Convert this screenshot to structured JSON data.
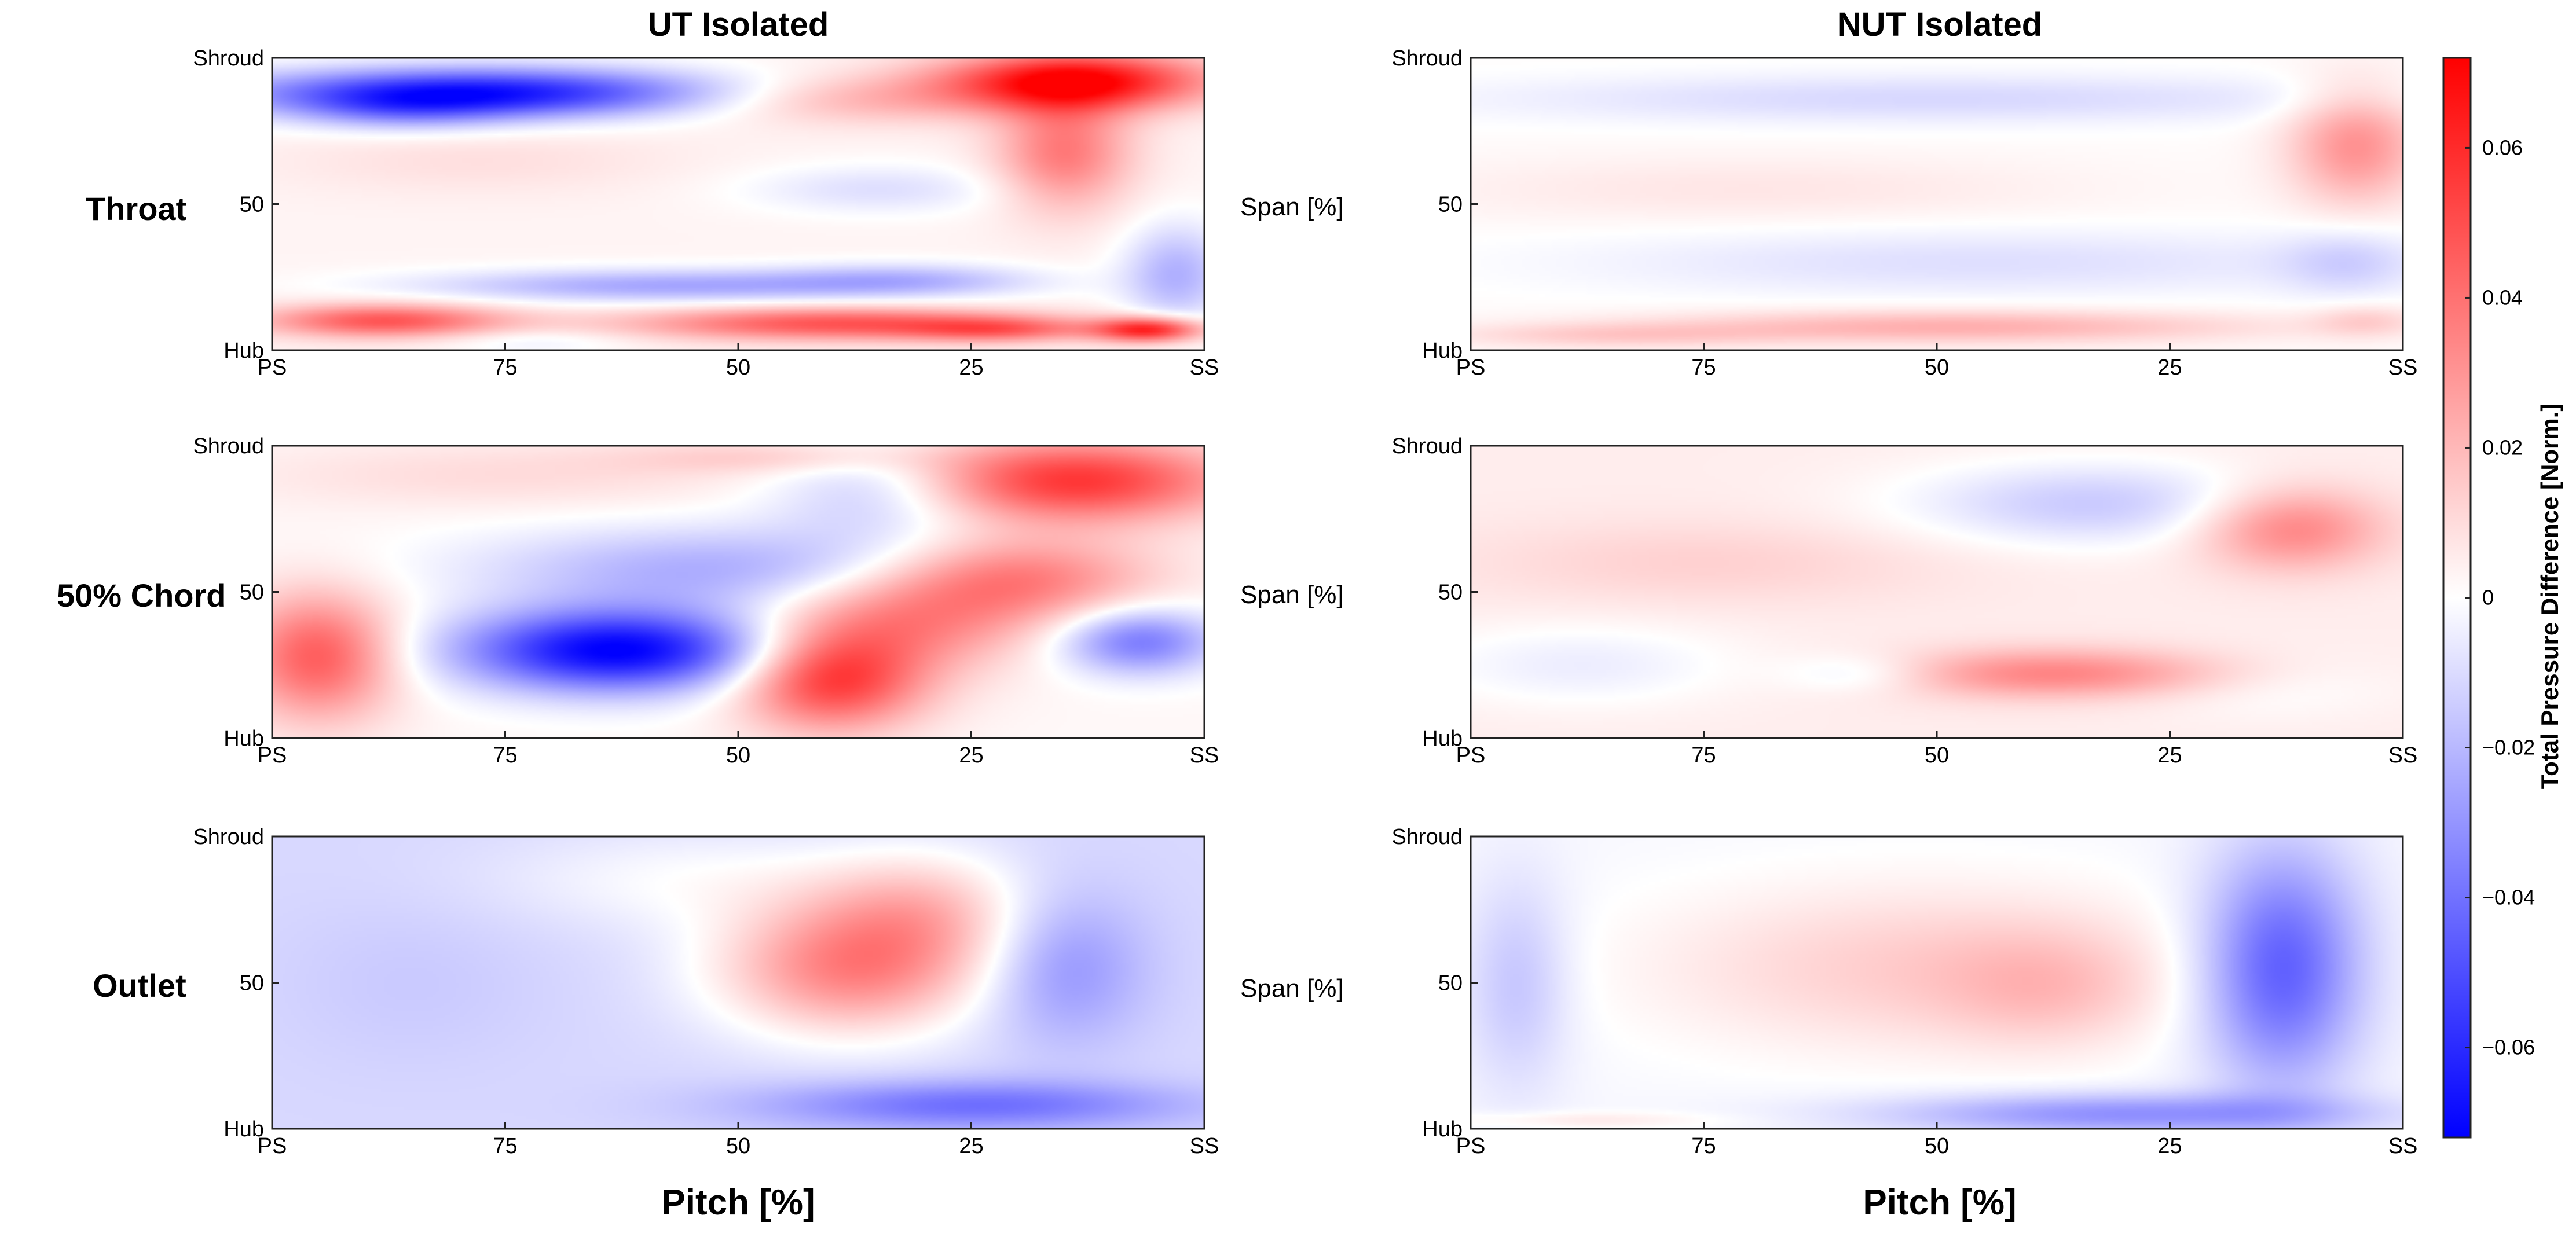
{
  "chart_data": {
    "type": "heatmap",
    "columns": [
      {
        "key": "ut",
        "title": "UT Isolated"
      },
      {
        "key": "nut",
        "title": "NUT Isolated"
      }
    ],
    "rows": [
      {
        "key": "throat",
        "label": "Throat"
      },
      {
        "key": "chord50",
        "label": "50% Chord"
      },
      {
        "key": "outlet",
        "label": "Outlet"
      }
    ],
    "x_axis": {
      "label": "Pitch [%]",
      "range": [
        100,
        0
      ],
      "tick_values": [
        100,
        75,
        50,
        25,
        0
      ],
      "tick_labels": [
        "PS",
        "75",
        "50",
        "25",
        "SS"
      ]
    },
    "y_axis": {
      "label": "Span [%]",
      "range": [
        0,
        100
      ],
      "tick_values": [
        0,
        50,
        100
      ],
      "tick_labels": [
        "Hub",
        "50",
        "Shroud"
      ]
    },
    "colorbar": {
      "label": "Total Pressure Difference [Norm.]",
      "range": [
        -0.072,
        0.072
      ],
      "tick_values": [
        0.06,
        0.04,
        0.02,
        0,
        -0.02,
        -0.04,
        -0.06
      ],
      "tick_labels": [
        "0.06",
        "0.04",
        "0.02",
        "0",
        "−0.02",
        "−0.04",
        "−0.06"
      ],
      "colors": {
        "low": "#0000ff",
        "mid": "#ffffff",
        "high": "#ff0000"
      }
    },
    "panels": [
      {
        "row": "throat",
        "col": "ut",
        "base": 0.003,
        "features": [
          {
            "pitch": 78,
            "span": 88,
            "sp": 18,
            "ss": 6,
            "amp": -0.07
          },
          {
            "pitch": 86,
            "span": 82,
            "sp": 8,
            "ss": 5,
            "amp": -0.02
          },
          {
            "pitch": 14,
            "span": 92,
            "sp": 10,
            "ss": 7,
            "amp": 0.07
          },
          {
            "pitch": 15,
            "span": 68,
            "sp": 5,
            "ss": 14,
            "amp": 0.035
          },
          {
            "pitch": 38,
            "span": 86,
            "sp": 12,
            "ss": 6,
            "amp": 0.02
          },
          {
            "pitch": 35,
            "span": 55,
            "sp": 10,
            "ss": 6,
            "amp": -0.012
          },
          {
            "pitch": 78,
            "span": 65,
            "sp": 15,
            "ss": 8,
            "amp": 0.006
          },
          {
            "pitch": 58,
            "span": 22,
            "sp": 18,
            "ss": 4,
            "amp": -0.028
          },
          {
            "pitch": 32,
            "span": 24,
            "sp": 10,
            "ss": 4,
            "amp": -0.02
          },
          {
            "pitch": 3,
            "span": 26,
            "sp": 4,
            "ss": 12,
            "amp": -0.025
          },
          {
            "pitch": 40,
            "span": 9,
            "sp": 15,
            "ss": 4,
            "amp": 0.045
          },
          {
            "pitch": 6,
            "span": 7,
            "sp": 4,
            "ss": 3,
            "amp": 0.06
          },
          {
            "pitch": 88,
            "span": 10,
            "sp": 9,
            "ss": 4,
            "amp": 0.045
          },
          {
            "pitch": 22,
            "span": 7,
            "sp": 7,
            "ss": 3,
            "amp": 0.03
          },
          {
            "pitch": 72,
            "span": 3,
            "sp": 7,
            "ss": 3,
            "amp": -0.008
          }
        ]
      },
      {
        "row": "throat",
        "col": "nut",
        "base": 0.001,
        "features": [
          {
            "pitch": 50,
            "span": 86,
            "sp": 34,
            "ss": 6,
            "amp": -0.012
          },
          {
            "pitch": 5,
            "span": 70,
            "sp": 5,
            "ss": 14,
            "amp": 0.03
          },
          {
            "pitch": 70,
            "span": 55,
            "sp": 25,
            "ss": 8,
            "amp": 0.006
          },
          {
            "pitch": 45,
            "span": 30,
            "sp": 30,
            "ss": 8,
            "amp": -0.01
          },
          {
            "pitch": 6,
            "span": 30,
            "sp": 5,
            "ss": 8,
            "amp": -0.012
          },
          {
            "pitch": 48,
            "span": 8,
            "sp": 22,
            "ss": 4,
            "amp": 0.022
          },
          {
            "pitch": 85,
            "span": 5,
            "sp": 12,
            "ss": 3,
            "amp": 0.012
          },
          {
            "pitch": 4,
            "span": 10,
            "sp": 4,
            "ss": 4,
            "amp": 0.012
          }
        ]
      },
      {
        "row": "chord50",
        "col": "ut",
        "base": 0.002,
        "features": [
          {
            "pitch": 63,
            "span": 30,
            "sp": 12,
            "ss": 10,
            "amp": -0.075
          },
          {
            "pitch": 52,
            "span": 58,
            "sp": 18,
            "ss": 10,
            "amp": -0.025
          },
          {
            "pitch": 35,
            "span": 85,
            "sp": 8,
            "ss": 12,
            "amp": -0.02
          },
          {
            "pitch": 14,
            "span": 88,
            "sp": 12,
            "ss": 10,
            "amp": 0.055
          },
          {
            "pitch": 20,
            "span": 55,
            "sp": 10,
            "ss": 10,
            "amp": 0.035
          },
          {
            "pitch": 40,
            "span": 20,
            "sp": 7,
            "ss": 12,
            "amp": 0.055
          },
          {
            "pitch": 32,
            "span": 40,
            "sp": 10,
            "ss": 12,
            "amp": 0.03
          },
          {
            "pitch": 95,
            "span": 28,
            "sp": 6,
            "ss": 15,
            "amp": 0.045
          },
          {
            "pitch": 7,
            "span": 33,
            "sp": 6,
            "ss": 8,
            "amp": -0.04
          },
          {
            "pitch": 75,
            "span": 90,
            "sp": 20,
            "ss": 8,
            "amp": 0.008
          },
          {
            "pitch": 45,
            "span": 96,
            "sp": 12,
            "ss": 4,
            "amp": 0.012
          }
        ]
      },
      {
        "row": "chord50",
        "col": "nut",
        "base": 0.005,
        "features": [
          {
            "pitch": 33,
            "span": 80,
            "sp": 14,
            "ss": 10,
            "amp": -0.02
          },
          {
            "pitch": 12,
            "span": 72,
            "sp": 7,
            "ss": 10,
            "amp": 0.032
          },
          {
            "pitch": 37,
            "span": 22,
            "sp": 13,
            "ss": 6,
            "amp": 0.03
          },
          {
            "pitch": 88,
            "span": 25,
            "sp": 12,
            "ss": 10,
            "amp": -0.01
          },
          {
            "pitch": 58,
            "span": 22,
            "sp": 6,
            "ss": 5,
            "amp": -0.012
          },
          {
            "pitch": 15,
            "span": 18,
            "sp": 10,
            "ss": 8,
            "amp": -0.006
          },
          {
            "pitch": 75,
            "span": 60,
            "sp": 18,
            "ss": 10,
            "amp": 0.008
          }
        ]
      },
      {
        "row": "outlet",
        "col": "ut",
        "base": -0.011,
        "features": [
          {
            "pitch": 38,
            "span": 55,
            "sp": 10,
            "ss": 16,
            "amp": 0.045
          },
          {
            "pitch": 30,
            "span": 75,
            "sp": 8,
            "ss": 14,
            "amp": 0.022
          },
          {
            "pitch": 15,
            "span": 55,
            "sp": 6,
            "ss": 18,
            "amp": -0.02
          },
          {
            "pitch": 25,
            "span": 8,
            "sp": 16,
            "ss": 6,
            "amp": -0.03
          },
          {
            "pitch": 55,
            "span": 85,
            "sp": 15,
            "ss": 12,
            "amp": 0.01
          },
          {
            "pitch": 85,
            "span": 50,
            "sp": 10,
            "ss": 20,
            "amp": -0.004
          }
        ]
      },
      {
        "row": "outlet",
        "col": "nut",
        "base": -0.002,
        "features": [
          {
            "pitch": 52,
            "span": 55,
            "sp": 20,
            "ss": 20,
            "amp": 0.016
          },
          {
            "pitch": 38,
            "span": 48,
            "sp": 8,
            "ss": 14,
            "amp": 0.012
          },
          {
            "pitch": 13,
            "span": 55,
            "sp": 6,
            "ss": 28,
            "amp": -0.045
          },
          {
            "pitch": 30,
            "span": 5,
            "sp": 18,
            "ss": 5,
            "amp": -0.03
          },
          {
            "pitch": 95,
            "span": 50,
            "sp": 4,
            "ss": 25,
            "amp": -0.015
          },
          {
            "pitch": 88,
            "span": 3,
            "sp": 10,
            "ss": 2,
            "amp": 0.008
          }
        ]
      }
    ]
  }
}
